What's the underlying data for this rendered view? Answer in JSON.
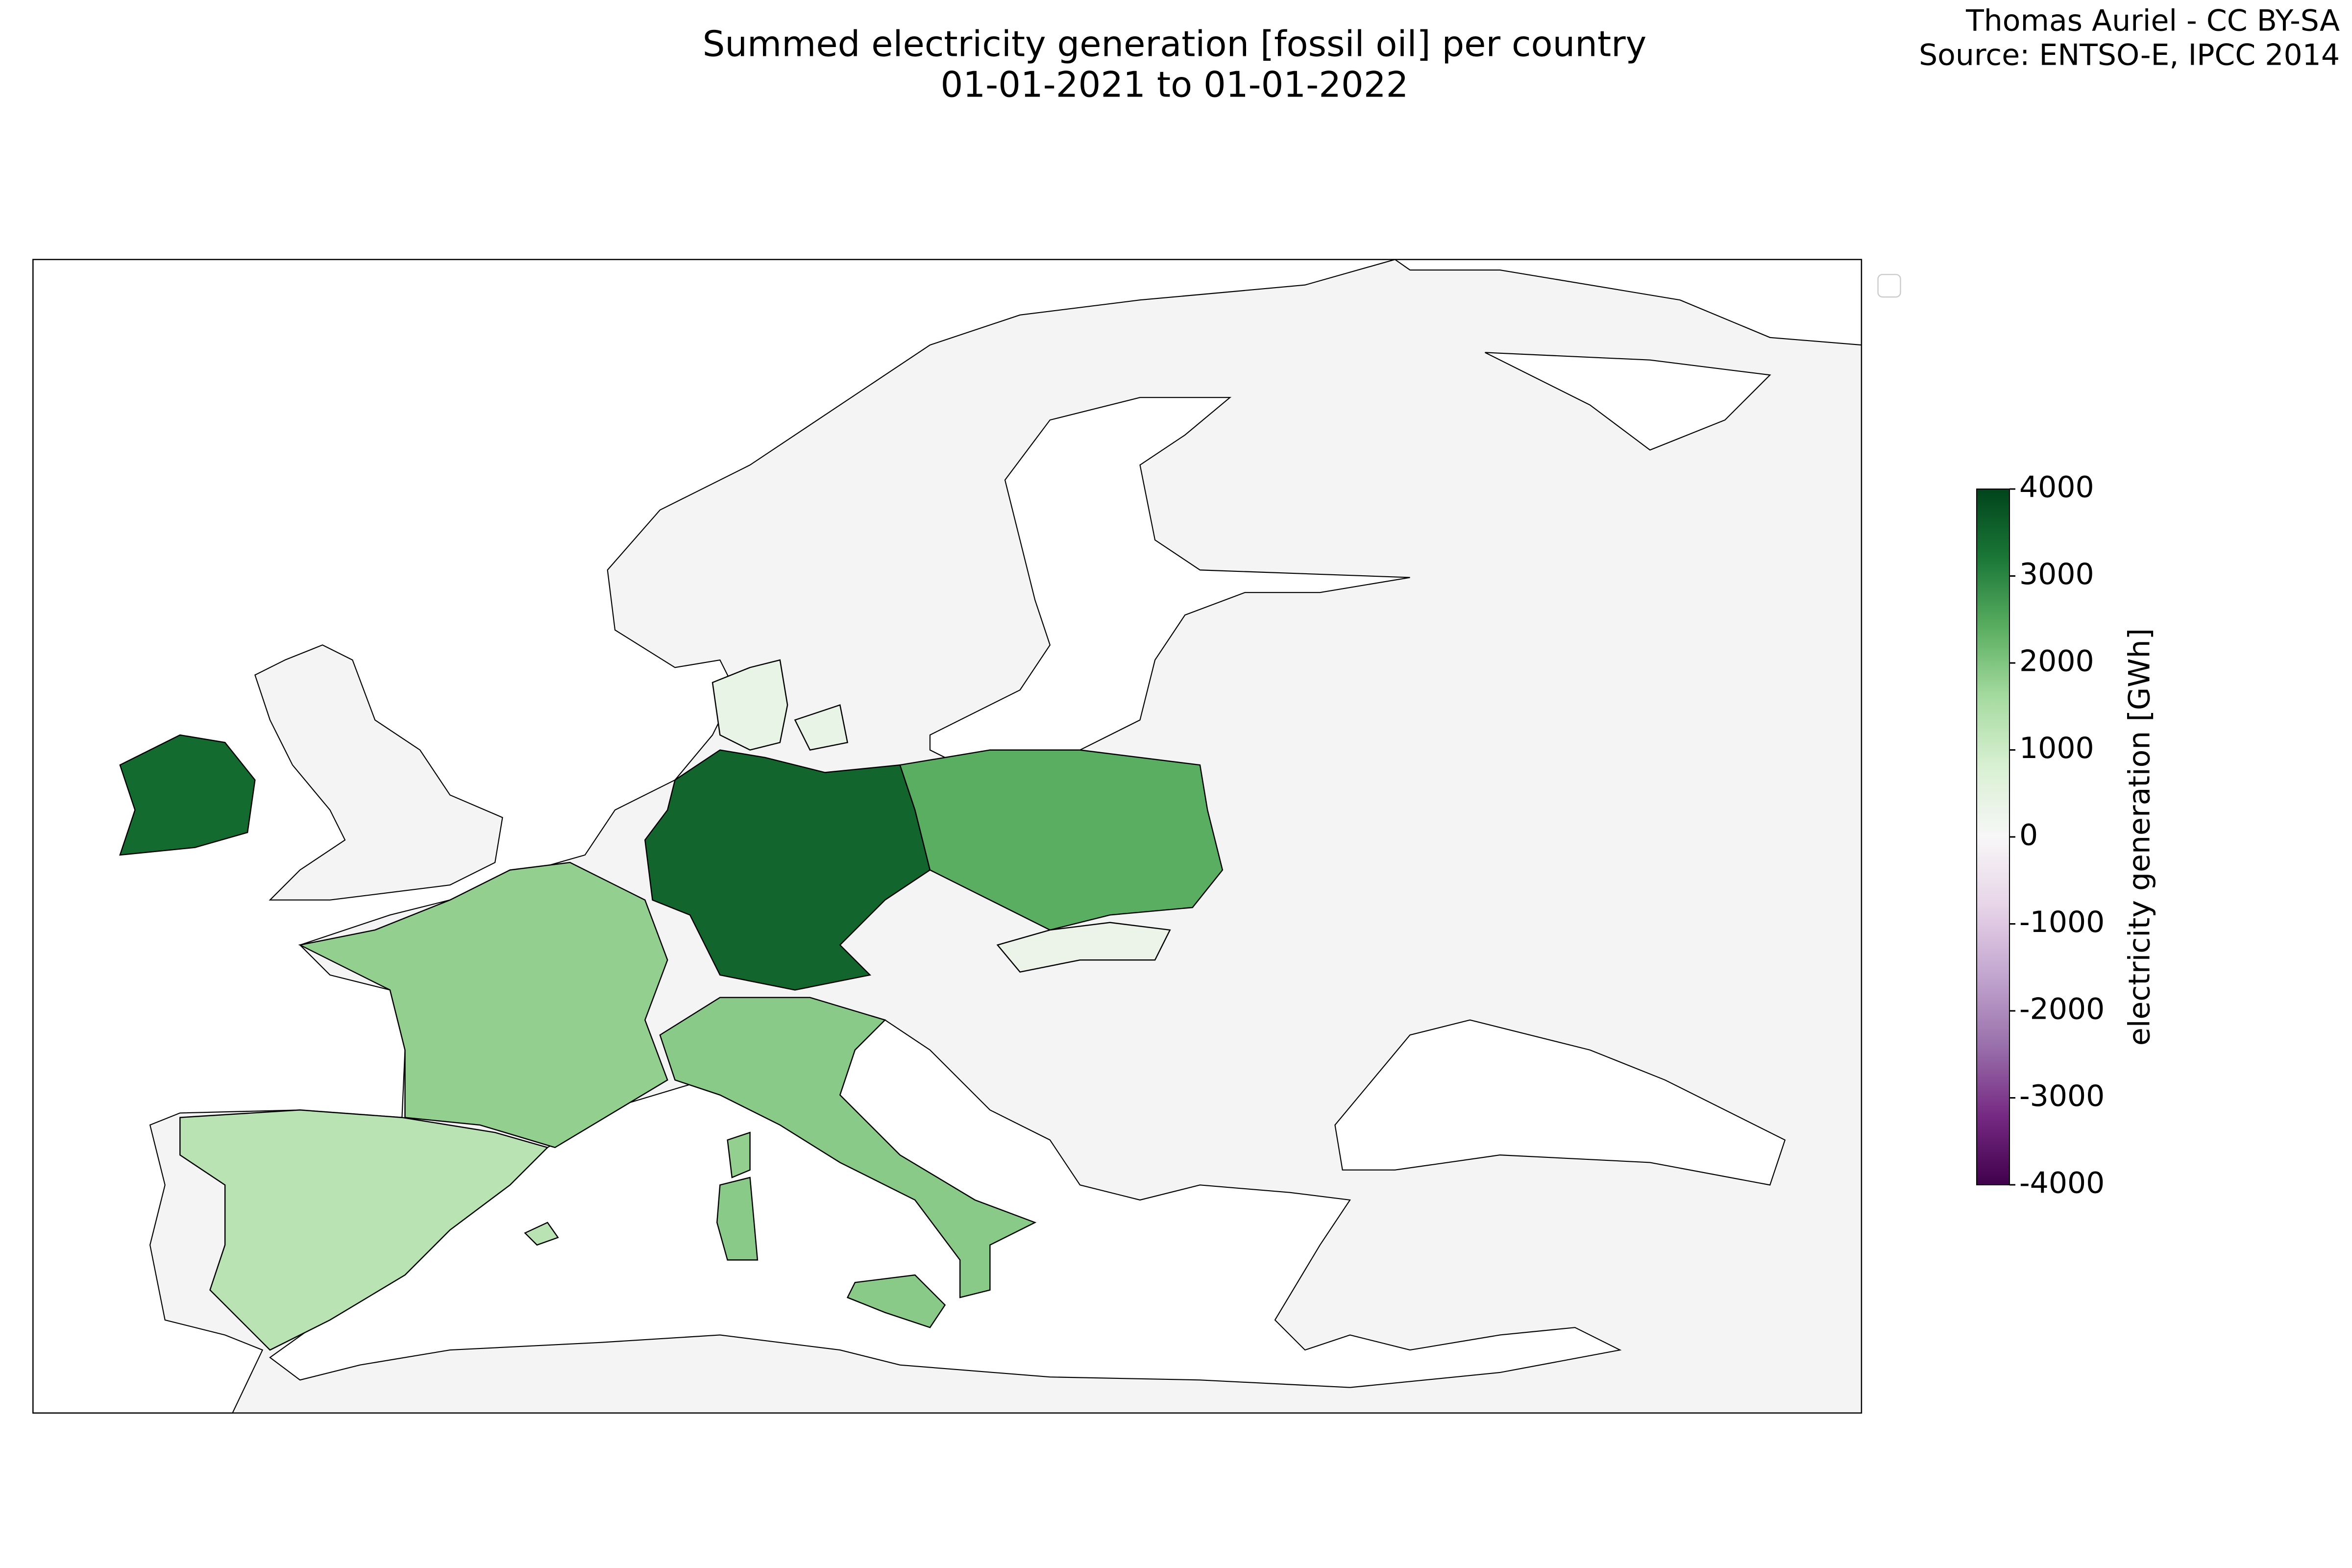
{
  "chart_data": {
    "type": "choropleth",
    "title": "Summed electricity generation [fossil oil] per country",
    "subtitle": "01-01-2021 to 01-01-2022",
    "attribution": [
      "Thomas Auriel - CC BY-SA",
      "Source: ENTSO-E, IPCC 2014"
    ],
    "values": [
      3400,
      3500,
      2400,
      1800,
      1900,
      1300,
      400,
      300
    ],
    "colormap": "PRGn",
    "colorbar": {
      "label": "electricity generation [GWh]",
      "lim": [
        -4000,
        4000
      ],
      "ticks": [
        4000,
        3000,
        2000,
        1000,
        0,
        -1000,
        -2000,
        -3000,
        -4000
      ]
    }
  }
}
